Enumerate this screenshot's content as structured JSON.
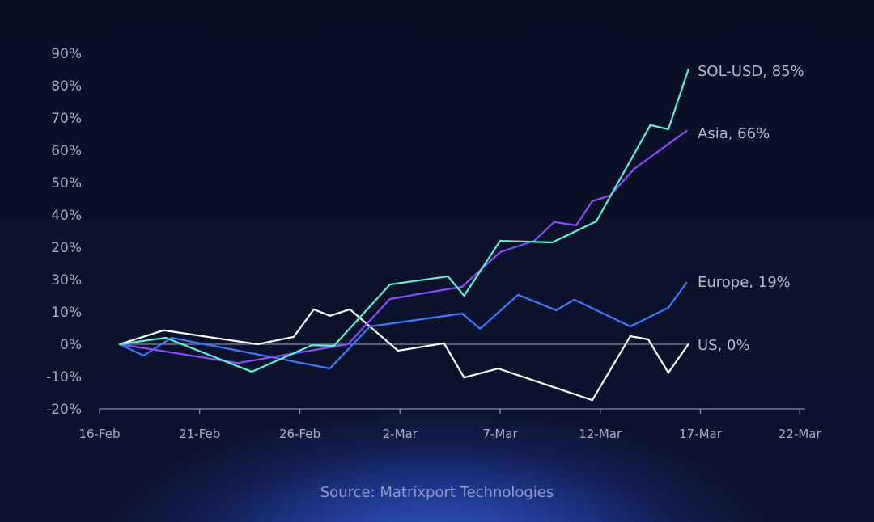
{
  "chart_data": {
    "type": "line",
    "title": "",
    "xlabel": "",
    "ylabel": "",
    "grid": false,
    "legend_position": "inline-end-labels",
    "x_tick_labels": [
      "16-Feb",
      "21-Feb",
      "26-Feb",
      "2-Mar",
      "7-Mar",
      "12-Mar",
      "17-Mar",
      "22-Mar"
    ],
    "y_tick_labels": [
      "-20%",
      "-10%",
      "0%",
      "10%",
      "30%",
      "20%",
      "40%",
      "50%",
      "60%",
      "70%",
      "80%",
      "90%"
    ],
    "ylim": [
      -20,
      90
    ],
    "xlim_days_from_16_feb": [
      0,
      35
    ],
    "zero_line": true,
    "series": [
      {
        "name": "SOL-USD",
        "end_label": "SOL-USD, 85%",
        "color": "#5ff0d0",
        "points": [
          [
            1.0,
            0
          ],
          [
            3.3,
            2
          ],
          [
            7.6,
            -8.5
          ],
          [
            10.6,
            -0.3
          ],
          [
            11.7,
            -0.5
          ],
          [
            14.5,
            18.5
          ],
          [
            17.4,
            21
          ],
          [
            18.2,
            15
          ],
          [
            20.0,
            32
          ],
          [
            22.6,
            31.5
          ],
          [
            24.8,
            38
          ],
          [
            27.5,
            67.8
          ],
          [
            28.4,
            66.5
          ],
          [
            29.4,
            85
          ]
        ]
      },
      {
        "name": "Asia",
        "end_label": "Asia, 66%",
        "color": "#8c4bff",
        "points": [
          [
            1.0,
            0
          ],
          [
            6.9,
            -5.8
          ],
          [
            12.4,
            0
          ],
          [
            14.5,
            14
          ],
          [
            18.1,
            17.8
          ],
          [
            20.0,
            28.5
          ],
          [
            21.7,
            32
          ],
          [
            22.7,
            37.8
          ],
          [
            23.8,
            36.8
          ],
          [
            24.6,
            44.3
          ],
          [
            25.5,
            46
          ],
          [
            26.7,
            54.3
          ],
          [
            29.3,
            66
          ]
        ]
      },
      {
        "name": "Europe",
        "end_label": "Europe, 19%",
        "color": "#3b7bff",
        "points": [
          [
            1.0,
            0
          ],
          [
            2.2,
            -3.5
          ],
          [
            3.6,
            2
          ],
          [
            11.5,
            -7.5
          ],
          [
            13.5,
            5.5
          ],
          [
            18.1,
            9.5
          ],
          [
            19.0,
            4.8
          ],
          [
            20.9,
            15.3
          ],
          [
            22.8,
            10.5
          ],
          [
            23.7,
            13.8
          ],
          [
            26.5,
            5.5
          ],
          [
            28.4,
            11.3
          ],
          [
            29.3,
            19
          ]
        ]
      },
      {
        "name": "US",
        "end_label": "US, 0%",
        "color": "#ffffff",
        "points": [
          [
            1.0,
            0
          ],
          [
            3.2,
            4.3
          ],
          [
            7.9,
            0
          ],
          [
            9.7,
            2.3
          ],
          [
            10.7,
            10.8
          ],
          [
            11.5,
            8.8
          ],
          [
            12.5,
            10.8
          ],
          [
            14.9,
            -2
          ],
          [
            17.2,
            0.3
          ],
          [
            18.2,
            -10.3
          ],
          [
            19.9,
            -7.5
          ],
          [
            24.6,
            -17.3
          ],
          [
            26.5,
            2.5
          ],
          [
            27.4,
            1.5
          ],
          [
            28.4,
            -8.8
          ],
          [
            29.4,
            0
          ]
        ]
      }
    ]
  },
  "footer": {
    "source": "Source: Matrixport Technologies"
  }
}
